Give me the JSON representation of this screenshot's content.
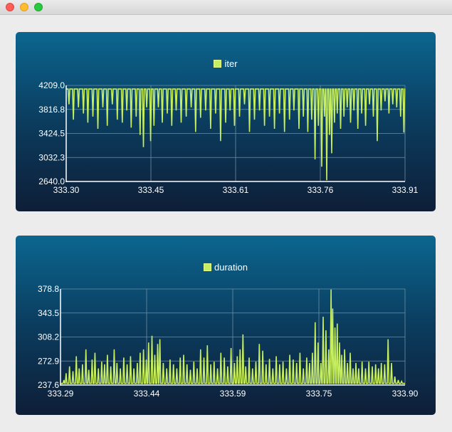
{
  "window": {
    "buttons": [
      "close",
      "minimize",
      "zoom"
    ]
  },
  "colors": {
    "series": "#c6ee5e",
    "grid": "#6f8ea6",
    "axis": "#ffffff",
    "text": "#ffffff",
    "panel_top": "#0b6690",
    "panel_bottom": "#0e1e37"
  },
  "chart_data": [
    {
      "type": "line",
      "legend": "iter",
      "series": [
        {
          "name": "iter"
        }
      ],
      "xlim": [
        333.3,
        333.91
      ],
      "ylim": [
        2640.0,
        4209.0
      ],
      "x_ticks": [
        "333.30",
        "333.45",
        "333.61",
        "333.76",
        "333.91"
      ],
      "y_ticks": [
        "4209.0",
        "3816.8",
        "3424.5",
        "3032.3",
        "2640.0"
      ],
      "baseline": 4150,
      "grid": true,
      "legend_position": "top-center",
      "dips": [
        [
          333.305,
          3900
        ],
        [
          333.313,
          3650
        ],
        [
          333.322,
          3850
        ],
        [
          333.331,
          3750
        ],
        [
          333.339,
          3600
        ],
        [
          333.348,
          3700
        ],
        [
          333.357,
          3500
        ],
        [
          333.366,
          3850
        ],
        [
          333.374,
          3550
        ],
        [
          333.383,
          3900
        ],
        [
          333.392,
          3650
        ],
        [
          333.401,
          3600
        ],
        [
          333.409,
          3800
        ],
        [
          333.417,
          3520
        ],
        [
          333.426,
          3700
        ],
        [
          333.433,
          3400
        ],
        [
          333.439,
          3200
        ],
        [
          333.445,
          3850
        ],
        [
          333.452,
          3300
        ],
        [
          333.458,
          3550
        ],
        [
          333.466,
          3850
        ],
        [
          333.473,
          3600
        ],
        [
          333.482,
          3750
        ],
        [
          333.49,
          3550
        ],
        [
          333.498,
          3800
        ],
        [
          333.507,
          3600
        ],
        [
          333.516,
          3700
        ],
        [
          333.525,
          3850
        ],
        [
          333.533,
          3450
        ],
        [
          333.542,
          3680
        ],
        [
          333.551,
          3800
        ],
        [
          333.56,
          3500
        ],
        [
          333.569,
          3750
        ],
        [
          333.578,
          3300
        ],
        [
          333.587,
          3600
        ],
        [
          333.595,
          3800
        ],
        [
          333.603,
          3550
        ],
        [
          333.612,
          3700
        ],
        [
          333.621,
          3900
        ],
        [
          333.63,
          3450
        ],
        [
          333.639,
          3650
        ],
        [
          333.648,
          3800
        ],
        [
          333.657,
          3550
        ],
        [
          333.666,
          3700
        ],
        [
          333.675,
          3500
        ],
        [
          333.684,
          3750
        ],
        [
          333.693,
          3450
        ],
        [
          333.702,
          3650
        ],
        [
          333.71,
          3800
        ],
        [
          333.719,
          3500
        ],
        [
          333.727,
          3700
        ],
        [
          333.735,
          3450
        ],
        [
          333.742,
          3650
        ],
        [
          333.748,
          3000
        ],
        [
          333.754,
          3550
        ],
        [
          333.76,
          2880
        ],
        [
          333.765,
          3700
        ],
        [
          333.769,
          2660
        ],
        [
          333.774,
          3400
        ],
        [
          333.778,
          3100
        ],
        [
          333.783,
          3600
        ],
        [
          333.788,
          3750
        ],
        [
          333.794,
          3500
        ],
        [
          333.8,
          3700
        ],
        [
          333.806,
          3850
        ],
        [
          333.812,
          3600
        ],
        [
          333.818,
          3800
        ],
        [
          333.825,
          3500
        ],
        [
          333.832,
          3750
        ],
        [
          333.839,
          3550
        ],
        [
          333.846,
          3900
        ],
        [
          333.853,
          3700
        ],
        [
          333.86,
          3300
        ],
        [
          333.867,
          3800
        ],
        [
          333.874,
          3950
        ],
        [
          333.881,
          3750
        ],
        [
          333.888,
          3900
        ],
        [
          333.895,
          3850
        ],
        [
          333.902,
          3700
        ],
        [
          333.908,
          3440
        ]
      ]
    },
    {
      "type": "line",
      "legend": "duration",
      "series": [
        {
          "name": "duration"
        }
      ],
      "xlim": [
        333.29,
        333.9
      ],
      "ylim": [
        237.6,
        378.8
      ],
      "x_ticks": [
        "333.29",
        "333.44",
        "333.59",
        "333.75",
        "333.90"
      ],
      "y_ticks": [
        "378.8",
        "343.5",
        "308.2",
        "272.9",
        "237.6"
      ],
      "baseline": 240,
      "grid": true,
      "legend_position": "top-center",
      "spikes": [
        [
          333.296,
          245
        ],
        [
          333.3,
          255
        ],
        [
          333.306,
          265
        ],
        [
          333.312,
          258
        ],
        [
          333.318,
          280
        ],
        [
          333.323,
          262
        ],
        [
          333.329,
          268
        ],
        [
          333.335,
          290
        ],
        [
          333.34,
          260
        ],
        [
          333.346,
          275
        ],
        [
          333.351,
          285
        ],
        [
          333.357,
          262
        ],
        [
          333.363,
          272
        ],
        [
          333.368,
          268
        ],
        [
          333.373,
          282
        ],
        [
          333.379,
          265
        ],
        [
          333.385,
          290
        ],
        [
          333.39,
          270
        ],
        [
          333.396,
          262
        ],
        [
          333.402,
          278
        ],
        [
          333.408,
          268
        ],
        [
          333.414,
          280
        ],
        [
          333.42,
          262
        ],
        [
          333.426,
          270
        ],
        [
          333.431,
          285
        ],
        [
          333.437,
          290
        ],
        [
          333.442,
          275
        ],
        [
          333.446,
          300
        ],
        [
          333.452,
          310
        ],
        [
          333.457,
          282
        ],
        [
          333.462,
          298
        ],
        [
          333.466,
          305
        ],
        [
          333.472,
          270
        ],
        [
          333.478,
          262
        ],
        [
          333.484,
          275
        ],
        [
          333.49,
          268
        ],
        [
          333.496,
          262
        ],
        [
          333.502,
          278
        ],
        [
          333.508,
          282
        ],
        [
          333.514,
          268
        ],
        [
          333.52,
          260
        ],
        [
          333.526,
          272
        ],
        [
          333.532,
          262
        ],
        [
          333.538,
          290
        ],
        [
          333.544,
          278
        ],
        [
          333.55,
          296
        ],
        [
          333.556,
          268
        ],
        [
          333.562,
          272
        ],
        [
          333.568,
          262
        ],
        [
          333.574,
          285
        ],
        [
          333.58,
          278
        ],
        [
          333.586,
          265
        ],
        [
          333.592,
          292
        ],
        [
          333.598,
          270
        ],
        [
          333.603,
          280
        ],
        [
          333.608,
          290
        ],
        [
          333.613,
          312
        ],
        [
          333.618,
          265
        ],
        [
          333.624,
          278
        ],
        [
          333.63,
          262
        ],
        [
          333.636,
          272
        ],
        [
          333.642,
          298
        ],
        [
          333.648,
          288
        ],
        [
          333.654,
          268
        ],
        [
          333.66,
          276
        ],
        [
          333.666,
          262
        ],
        [
          333.672,
          280
        ],
        [
          333.678,
          268
        ],
        [
          333.684,
          272
        ],
        [
          333.69,
          262
        ],
        [
          333.696,
          282
        ],
        [
          333.702,
          275
        ],
        [
          333.708,
          270
        ],
        [
          333.714,
          285
        ],
        [
          333.72,
          262
        ],
        [
          333.726,
          278
        ],
        [
          333.731,
          270
        ],
        [
          333.736,
          285
        ],
        [
          333.741,
          330
        ],
        [
          333.746,
          300
        ],
        [
          333.751,
          270
        ],
        [
          333.755,
          338
        ],
        [
          333.76,
          318
        ],
        [
          333.765,
          290
        ],
        [
          333.769,
          378
        ],
        [
          333.772,
          350
        ],
        [
          333.776,
          322
        ],
        [
          333.78,
          328
        ],
        [
          333.784,
          300
        ],
        [
          333.788,
          282
        ],
        [
          333.793,
          290
        ],
        [
          333.798,
          270
        ],
        [
          333.803,
          285
        ],
        [
          333.808,
          262
        ],
        [
          333.813,
          270
        ],
        [
          333.818,
          262
        ],
        [
          333.824,
          272
        ],
        [
          333.83,
          262
        ],
        [
          333.836,
          272
        ],
        [
          333.842,
          265
        ],
        [
          333.848,
          268
        ],
        [
          333.853,
          262
        ],
        [
          333.858,
          270
        ],
        [
          333.864,
          268
        ],
        [
          333.87,
          305
        ],
        [
          333.876,
          270
        ],
        [
          333.882,
          250
        ],
        [
          333.888,
          245
        ],
        [
          333.894,
          243
        ]
      ]
    }
  ]
}
